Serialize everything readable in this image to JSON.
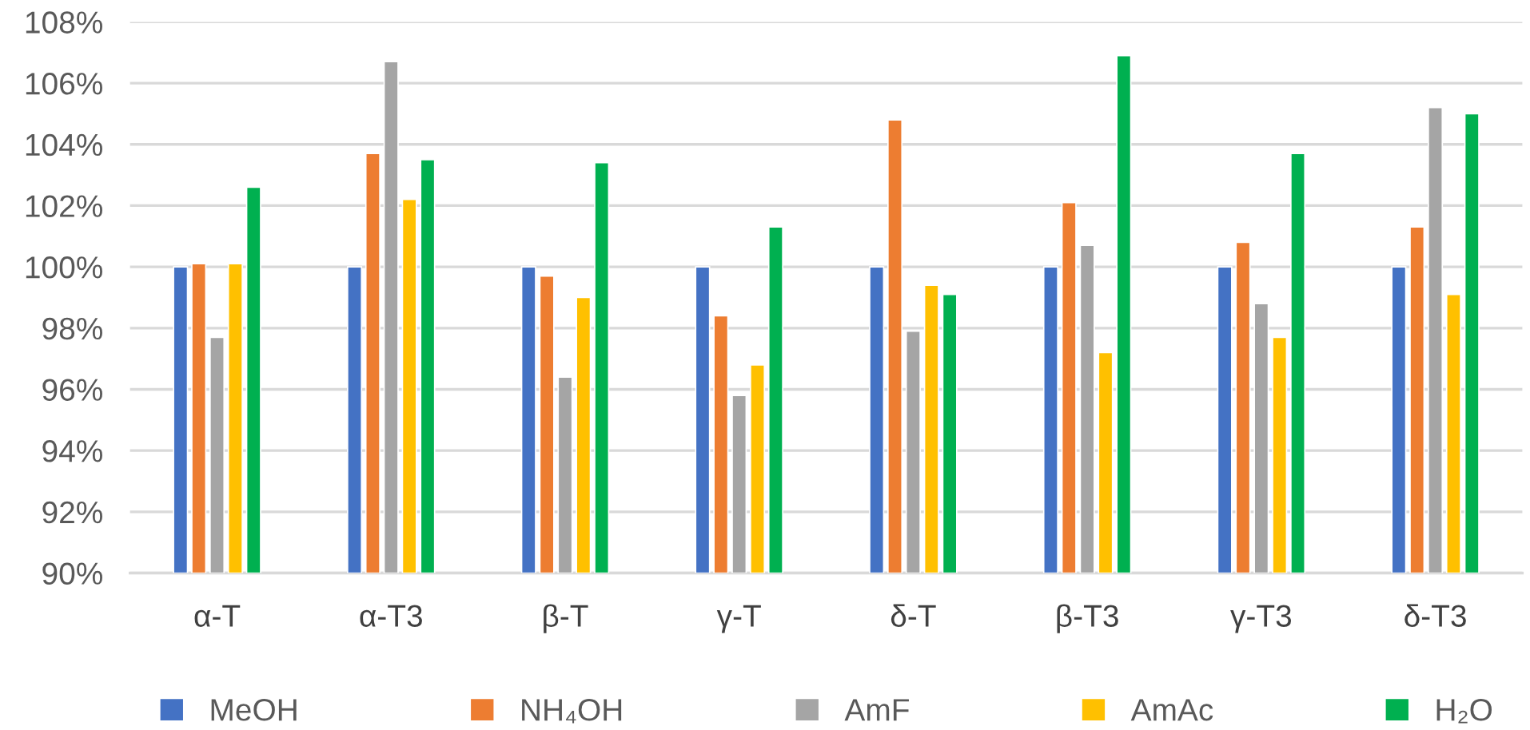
{
  "chart_data": {
    "type": "bar",
    "categories": [
      "α-T",
      "α-T3",
      "β-T",
      "γ-T",
      "δ-T",
      "β-T3",
      "γ-T3",
      "δ-T3"
    ],
    "series": [
      {
        "name": "MeOH",
        "color": "#4472c4",
        "values": [
          100,
          100,
          100,
          100,
          100,
          100,
          100,
          100
        ]
      },
      {
        "name": "NH₄OH",
        "color": "#ed7d31",
        "values": [
          100.1,
          103.7,
          99.7,
          98.4,
          104.8,
          102.1,
          100.8,
          101.3
        ]
      },
      {
        "name": "AmF",
        "color": "#a5a5a5",
        "values": [
          97.7,
          106.7,
          96.4,
          95.8,
          97.9,
          100.7,
          98.8,
          105.2
        ]
      },
      {
        "name": "AmAc",
        "color": "#ffc000",
        "values": [
          100.1,
          102.2,
          99.0,
          96.8,
          99.4,
          97.2,
          97.7,
          99.1
        ]
      },
      {
        "name": "H₂O",
        "color": "#00b050",
        "values": [
          102.6,
          103.5,
          103.4,
          101.3,
          99.1,
          106.9,
          103.7,
          105.0
        ]
      }
    ],
    "ylim": [
      90,
      108
    ],
    "yticks": [
      {
        "value": 90,
        "label": "90%"
      },
      {
        "value": 92,
        "label": "92%"
      },
      {
        "value": 94,
        "label": "94%"
      },
      {
        "value": 96,
        "label": "96%"
      },
      {
        "value": 98,
        "label": "98%"
      },
      {
        "value": 100,
        "label": "100%"
      },
      {
        "value": 102,
        "label": "102%"
      },
      {
        "value": 104,
        "label": "104%"
      },
      {
        "value": 106,
        "label": "106%"
      },
      {
        "value": 108,
        "label": "108%"
      }
    ],
    "grid": "y",
    "legend": "bottom"
  }
}
